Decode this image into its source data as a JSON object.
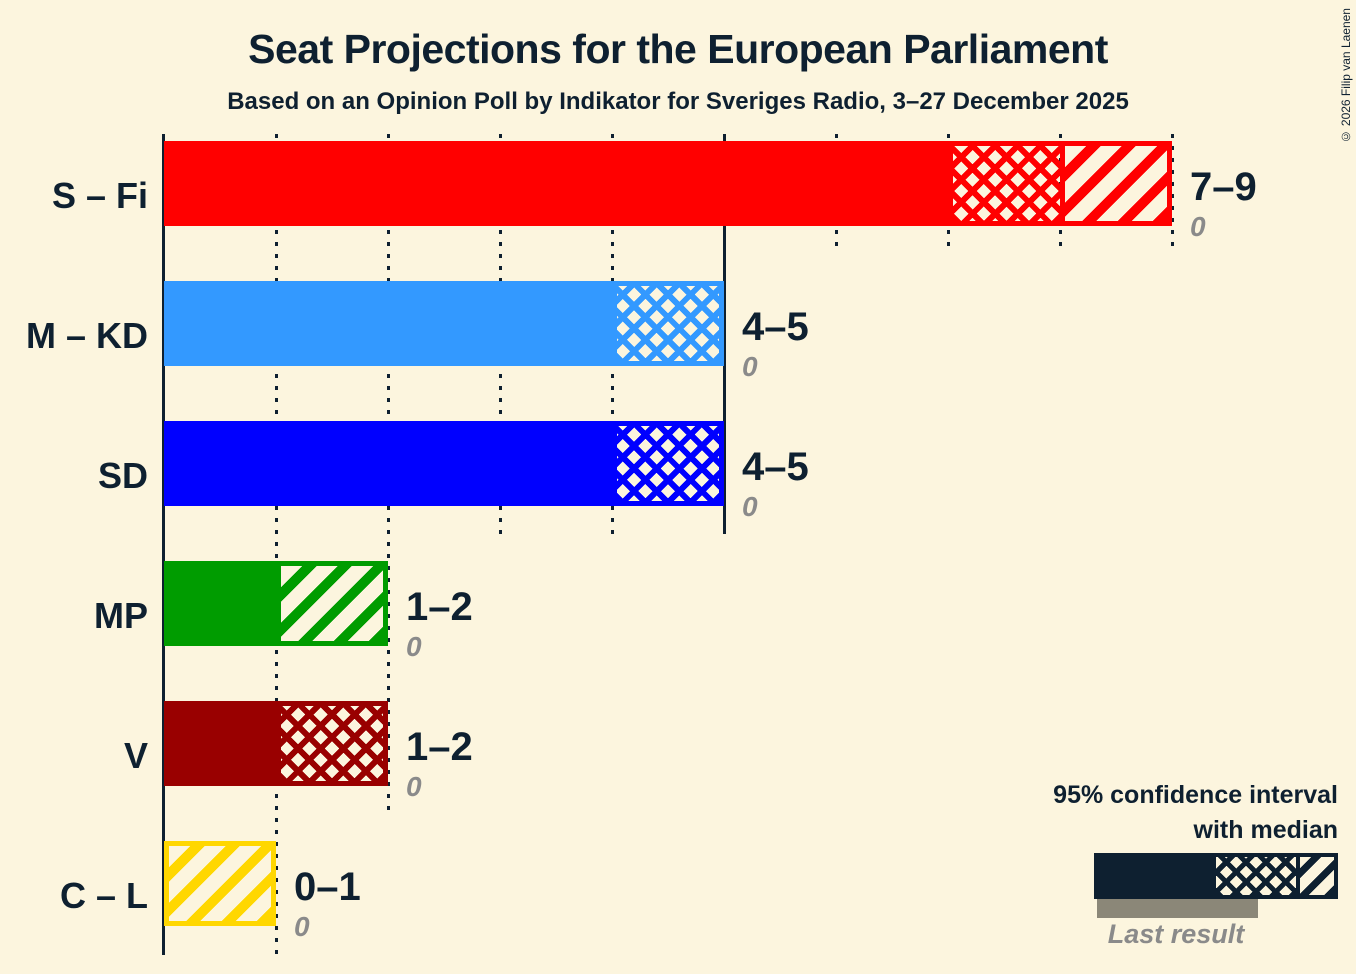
{
  "page": {
    "title": "Seat Projections for the European Parliament",
    "subtitle": "Based on an Opinion Poll by Indikator for Sveriges Radio, 3–27 December 2025",
    "copyright": "© 2026 Filip van Laenen"
  },
  "colors": {
    "background": "#fcf5de",
    "text": "#0e2030",
    "gray_text": "#8a8a8a",
    "last_result_bar": "#8b8778"
  },
  "legend": {
    "ci_label_line1": "95% confidence interval",
    "ci_label_line2": "with median",
    "last_result_label": "Last result"
  },
  "chart_data": {
    "type": "bar",
    "orientation": "horizontal",
    "unit": "seats",
    "title": "Seat Projections for the European Parliament",
    "x_axis": {
      "min": 0,
      "max": 9,
      "gridline_interval": 1,
      "solid_gridlines_at": [
        0,
        5
      ],
      "gridline_style": "dotted",
      "tick_labels_visible": false
    },
    "series": [
      {
        "party": "S – Fi",
        "color": "#ff0000",
        "ci_low": 7,
        "median": 8,
        "ci_high": 9,
        "ci_label": "7–9",
        "last_result": 0,
        "last_result_label": "0"
      },
      {
        "party": "M – KD",
        "color": "#3399ff",
        "ci_low": 4,
        "median": 5,
        "ci_high": 5,
        "ci_label": "4–5",
        "last_result": 0,
        "last_result_label": "0"
      },
      {
        "party": "SD",
        "color": "#0000ff",
        "ci_low": 4,
        "median": 5,
        "ci_high": 5,
        "ci_label": "4–5",
        "last_result": 0,
        "last_result_label": "0"
      },
      {
        "party": "MP",
        "color": "#009c00",
        "ci_low": 1,
        "median": 1,
        "ci_high": 2,
        "ci_label": "1–2",
        "last_result": 0,
        "last_result_label": "0"
      },
      {
        "party": "V",
        "color": "#990000",
        "ci_low": 1,
        "median": 2,
        "ci_high": 2,
        "ci_label": "1–2",
        "last_result": 0,
        "last_result_label": "0"
      },
      {
        "party": "C – L",
        "color": "#ffd700",
        "ci_low": 0,
        "median": 0,
        "ci_high": 1,
        "ci_label": "0–1",
        "last_result": 0,
        "last_result_label": "0"
      }
    ]
  }
}
